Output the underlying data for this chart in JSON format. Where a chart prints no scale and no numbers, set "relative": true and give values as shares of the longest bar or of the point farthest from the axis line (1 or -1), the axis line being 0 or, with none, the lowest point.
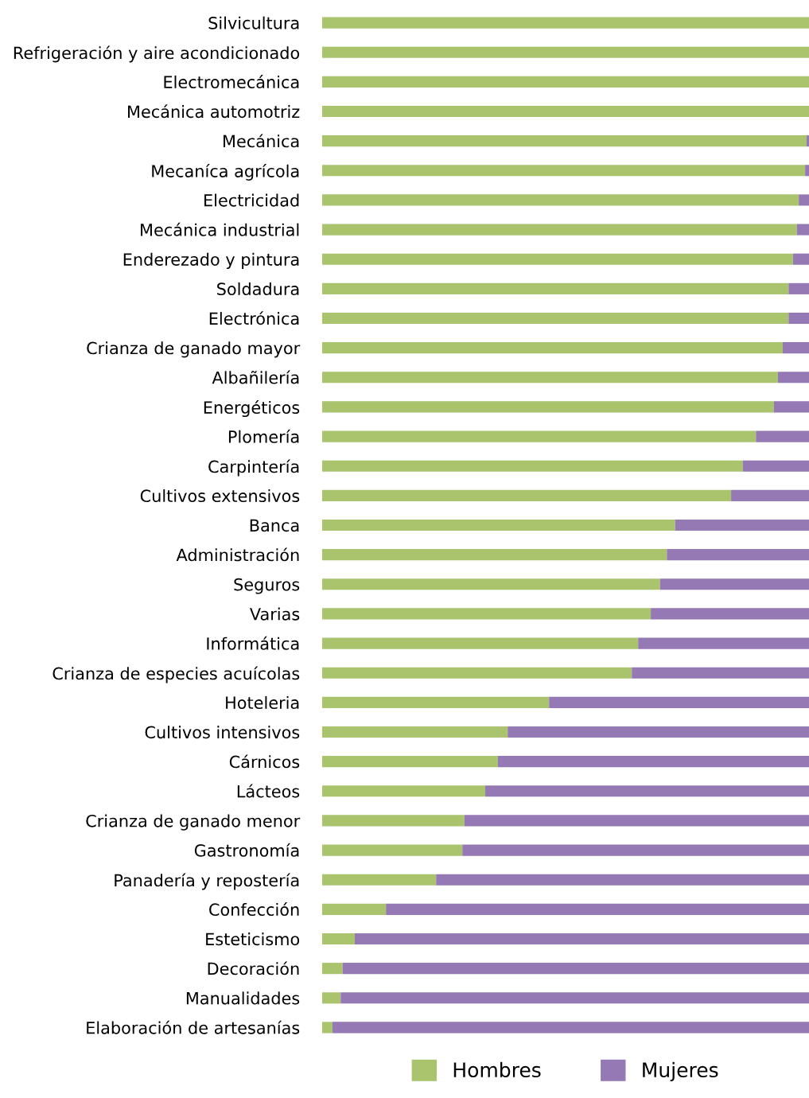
{
  "chart_data": {
    "type": "bar",
    "orientation": "horizontal",
    "stacked": true,
    "relative": true,
    "legend": "bottom",
    "categories": [
      "Silvicultura",
      "Refrigeración y aire acondicionado",
      "Electromecánica",
      "Mecánica automotriz",
      "Mecánica",
      "Mecaníca agrícola",
      "Electricidad",
      "Mecánica industrial",
      "Enderezado y pintura",
      "Soldadura",
      "Electrónica",
      "Crianza de ganado mayor",
      "Albañilería",
      "Energéticos",
      "Plomería",
      "Carpintería",
      "Cultivos extensivos",
      "Banca",
      "Administración",
      "Seguros",
      "Varias",
      "Informática",
      "Crianza de especies acuícolas",
      "Hoteleria",
      "Cultivos intensivos",
      "Cárnicos",
      "Lácteos",
      "Crianza de ganado menor",
      "Gastronomía",
      "Panadería y repostería",
      "Confección",
      "Esteticismo",
      "Decoración",
      "Manualidades",
      "Elaboración de artesanías"
    ],
    "series": [
      {
        "name": "Hombres",
        "color": "#a9c46c",
        "values": [
          1.0,
          1.0,
          1.0,
          1.0,
          0.995,
          0.992,
          0.979,
          0.975,
          0.967,
          0.958,
          0.958,
          0.946,
          0.936,
          0.928,
          0.891,
          0.864,
          0.84,
          0.725,
          0.708,
          0.694,
          0.675,
          0.649,
          0.636,
          0.466,
          0.381,
          0.361,
          0.335,
          0.292,
          0.288,
          0.234,
          0.131,
          0.067,
          0.042,
          0.038,
          0.021
        ]
      },
      {
        "name": "Mujeres",
        "color": "#9579b4",
        "values": [
          0.0,
          0.0,
          0.0,
          0.0,
          0.005,
          0.008,
          0.021,
          0.025,
          0.033,
          0.042,
          0.042,
          0.054,
          0.064,
          0.072,
          0.109,
          0.136,
          0.16,
          0.275,
          0.292,
          0.306,
          0.325,
          0.351,
          0.364,
          0.534,
          0.619,
          0.639,
          0.665,
          0.708,
          0.712,
          0.766,
          0.869,
          0.933,
          0.958,
          0.962,
          0.979
        ]
      }
    ]
  }
}
